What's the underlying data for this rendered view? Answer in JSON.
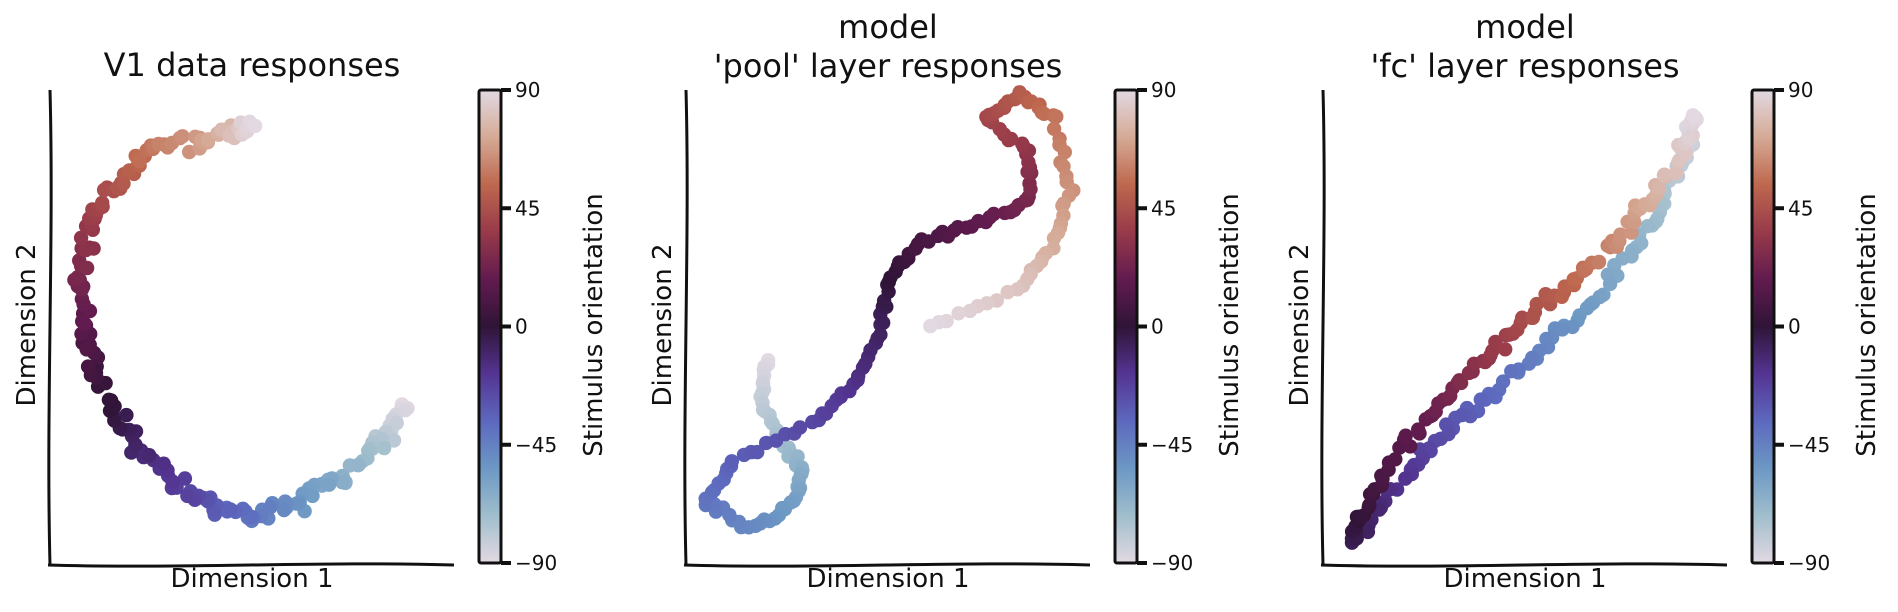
{
  "chart_data": [
    {
      "type": "scatter",
      "title": "V1 data responses",
      "xlabel": "Dimension 1",
      "ylabel": "Dimension 2",
      "xlim": [
        0,
        1
      ],
      "ylim": [
        0,
        1
      ],
      "colorbar": {
        "label": "Stimulus orientation",
        "range": [
          -90,
          90
        ],
        "ticks": [
          "90",
          "45",
          "0",
          "−45",
          "−90"
        ],
        "colormap": "twilight_shifted"
      },
      "curve": [
        [
          0.88,
          0.33
        ],
        [
          0.8,
          0.24
        ],
        [
          0.65,
          0.14
        ],
        [
          0.5,
          0.09
        ],
        [
          0.35,
          0.14
        ],
        [
          0.2,
          0.26
        ],
        [
          0.1,
          0.43
        ],
        [
          0.07,
          0.6
        ],
        [
          0.12,
          0.76
        ],
        [
          0.25,
          0.87
        ],
        [
          0.42,
          0.91
        ],
        [
          0.5,
          0.92
        ]
      ],
      "count": 200,
      "spread": 0.018
    },
    {
      "type": "scatter",
      "title": "model\n'pool' layer responses",
      "xlabel": "Dimension 1",
      "ylabel": "Dimension 2",
      "xlim": [
        0,
        1
      ],
      "ylim": [
        0,
        1
      ],
      "colorbar": {
        "label": "Stimulus orientation",
        "range": [
          -90,
          90
        ],
        "ticks": [
          "90",
          "45",
          "0",
          "−45",
          "−90"
        ],
        "colormap": "twilight_shifted"
      },
      "curve": [
        [
          0.2,
          0.43
        ],
        [
          0.18,
          0.35
        ],
        [
          0.23,
          0.26
        ],
        [
          0.29,
          0.2
        ],
        [
          0.27,
          0.13
        ],
        [
          0.17,
          0.07
        ],
        [
          0.05,
          0.13
        ],
        [
          0.12,
          0.22
        ],
        [
          0.32,
          0.3
        ],
        [
          0.42,
          0.38
        ],
        [
          0.48,
          0.49
        ],
        [
          0.5,
          0.6
        ],
        [
          0.58,
          0.68
        ],
        [
          0.72,
          0.72
        ],
        [
          0.85,
          0.76
        ],
        [
          0.85,
          0.87
        ],
        [
          0.74,
          0.94
        ],
        [
          0.83,
          0.99
        ],
        [
          0.91,
          0.94
        ],
        [
          0.95,
          0.79
        ],
        [
          0.91,
          0.67
        ],
        [
          0.82,
          0.58
        ],
        [
          0.6,
          0.5
        ]
      ],
      "count": 200,
      "spread": 0.008
    },
    {
      "type": "scatter",
      "title": "model\n'fc' layer responses",
      "xlabel": "Dimension 1",
      "ylabel": "Dimension 2",
      "xlim": [
        0,
        1
      ],
      "ylim": [
        0,
        1
      ],
      "colorbar": {
        "label": "Stimulus orientation",
        "range": [
          -90,
          90
        ],
        "ticks": [
          "90",
          "45",
          "0",
          "−45",
          "−90"
        ],
        "colormap": "twilight_shifted"
      },
      "curve": [
        [
          0.93,
          0.94
        ],
        [
          0.87,
          0.82
        ],
        [
          0.8,
          0.7
        ],
        [
          0.68,
          0.56
        ],
        [
          0.55,
          0.46
        ],
        [
          0.42,
          0.36
        ],
        [
          0.28,
          0.27
        ],
        [
          0.18,
          0.16
        ],
        [
          0.06,
          0.04
        ],
        [
          0.12,
          0.14
        ],
        [
          0.22,
          0.27
        ],
        [
          0.33,
          0.37
        ],
        [
          0.44,
          0.46
        ],
        [
          0.55,
          0.55
        ],
        [
          0.67,
          0.63
        ],
        [
          0.77,
          0.73
        ],
        [
          0.86,
          0.83
        ],
        [
          0.93,
          0.95
        ]
      ],
      "count": 200,
      "spread": 0.015
    }
  ]
}
